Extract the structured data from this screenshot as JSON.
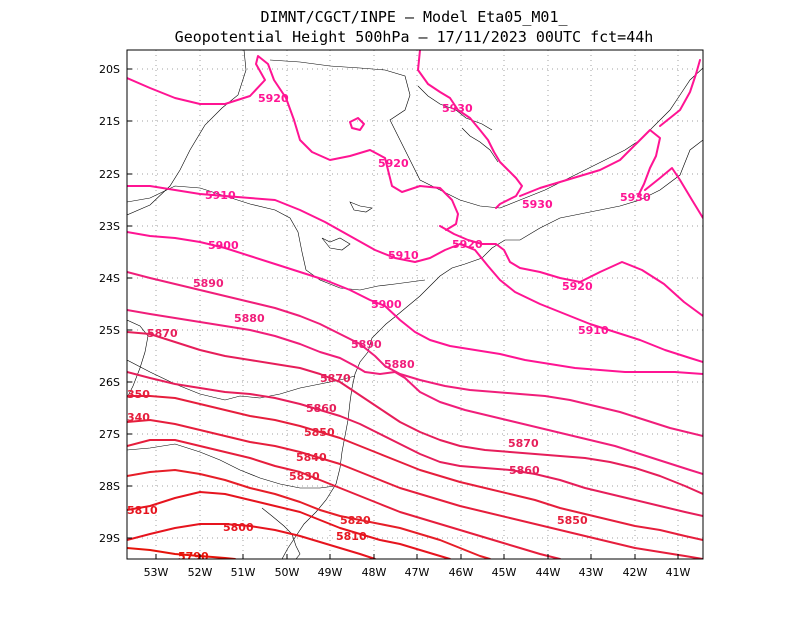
{
  "title": {
    "line1": "DIMNT/CGCT/INPE –  Model Eta05_M01_",
    "line2": "Geopotential Height 500hPa –  17/11/2023 00UTC fct=44h"
  },
  "lat_ticks": [
    "20S",
    "21S",
    "22S",
    "23S",
    "24S",
    "25S",
    "26S",
    "27S",
    "28S",
    "29S"
  ],
  "lon_ticks": [
    "53W",
    "52W",
    "51W",
    "50W",
    "49W",
    "48W",
    "47W",
    "46W",
    "45W",
    "44W",
    "43W",
    "42W",
    "41W"
  ],
  "contour_labels": [
    {
      "text": "5920",
      "color": "#ff1493"
    },
    {
      "text": "5930",
      "color": "#ff1493"
    },
    {
      "text": "5920",
      "color": "#ff1493"
    },
    {
      "text": "5910",
      "color": "#ff1493"
    },
    {
      "text": "5930",
      "color": "#ff1493"
    },
    {
      "text": "5930",
      "color": "#ff1493"
    },
    {
      "text": "5900",
      "color": "#ff1493"
    },
    {
      "text": "5920",
      "color": "#ff1493"
    },
    {
      "text": "5910",
      "color": "#ff1493"
    },
    {
      "text": "5890",
      "color": "#f01e7a"
    },
    {
      "text": "5920",
      "color": "#ff1493"
    },
    {
      "text": "5880",
      "color": "#f01e7a"
    },
    {
      "text": "5900",
      "color": "#ff1493"
    },
    {
      "text": "5870",
      "color": "#e61e5a"
    },
    {
      "text": "5910",
      "color": "#ff1493"
    },
    {
      "text": "5890",
      "color": "#f01e7a"
    },
    {
      "text": "5880",
      "color": "#f01e7a"
    },
    {
      "text": "5870",
      "color": "#e61e5a"
    },
    {
      "text": "350",
      "color": "#e61e3c"
    },
    {
      "text": "5860",
      "color": "#e61e5a"
    },
    {
      "text": "340",
      "color": "#e61e3c"
    },
    {
      "text": "5850",
      "color": "#e61e3c"
    },
    {
      "text": "5870",
      "color": "#e61e5a"
    },
    {
      "text": "5840",
      "color": "#e61e3c"
    },
    {
      "text": "5860",
      "color": "#e61e5a"
    },
    {
      "text": "5830",
      "color": "#e61e3c"
    },
    {
      "text": "5810",
      "color": "#e6141e"
    },
    {
      "text": "5820",
      "color": "#e61e28"
    },
    {
      "text": "5850",
      "color": "#e61e3c"
    },
    {
      "text": "5800",
      "color": "#e6141e"
    },
    {
      "text": "5810",
      "color": "#e6141e"
    },
    {
      "text": "5790",
      "color": "#e6140a"
    }
  ]
}
